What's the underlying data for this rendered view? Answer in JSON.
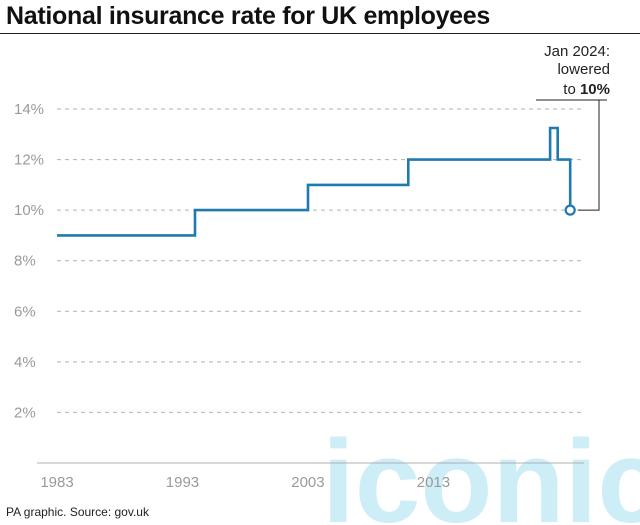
{
  "title": "National insurance rate for UK employees",
  "footer": "PA graphic. Source: gov.uk",
  "annotation": {
    "line1": "Jan 2024:",
    "line2": "lowered",
    "line3_prefix": "to ",
    "line3_value": "10%"
  },
  "colors": {
    "series": "#1f7ab0",
    "grid": "#b0b0b0",
    "tick_text": "#9a9a9a",
    "watermark": "#b8e6f5"
  },
  "watermark": "iconic",
  "chart_data": {
    "type": "line",
    "step": true,
    "title": "National insurance rate for UK employees",
    "xlabel": "",
    "ylabel": "",
    "xlim": [
      1983,
      2025
    ],
    "ylim": [
      0,
      14
    ],
    "yticks": [
      2,
      4,
      6,
      8,
      10,
      12,
      14
    ],
    "ytick_labels": [
      "2%",
      "4%",
      "6%",
      "8%",
      "10%",
      "12%",
      "14%"
    ],
    "xticks": [
      1983,
      1993,
      2003,
      2013
    ],
    "xtick_labels": [
      "1983",
      "1993",
      "2003",
      "2013"
    ],
    "grid": true,
    "series": [
      {
        "x": [
          1983,
          1994,
          1994,
          2003,
          2003,
          2011,
          2011,
          2022.3,
          2022.3,
          2022.9,
          2022.9,
          2023.9,
          2023.9
        ],
        "y": [
          9,
          9,
          10,
          10,
          11,
          11,
          12,
          12,
          13.25,
          13.25,
          12,
          12,
          10
        ]
      }
    ],
    "end_marker": {
      "x": 2023.9,
      "y": 10
    }
  }
}
